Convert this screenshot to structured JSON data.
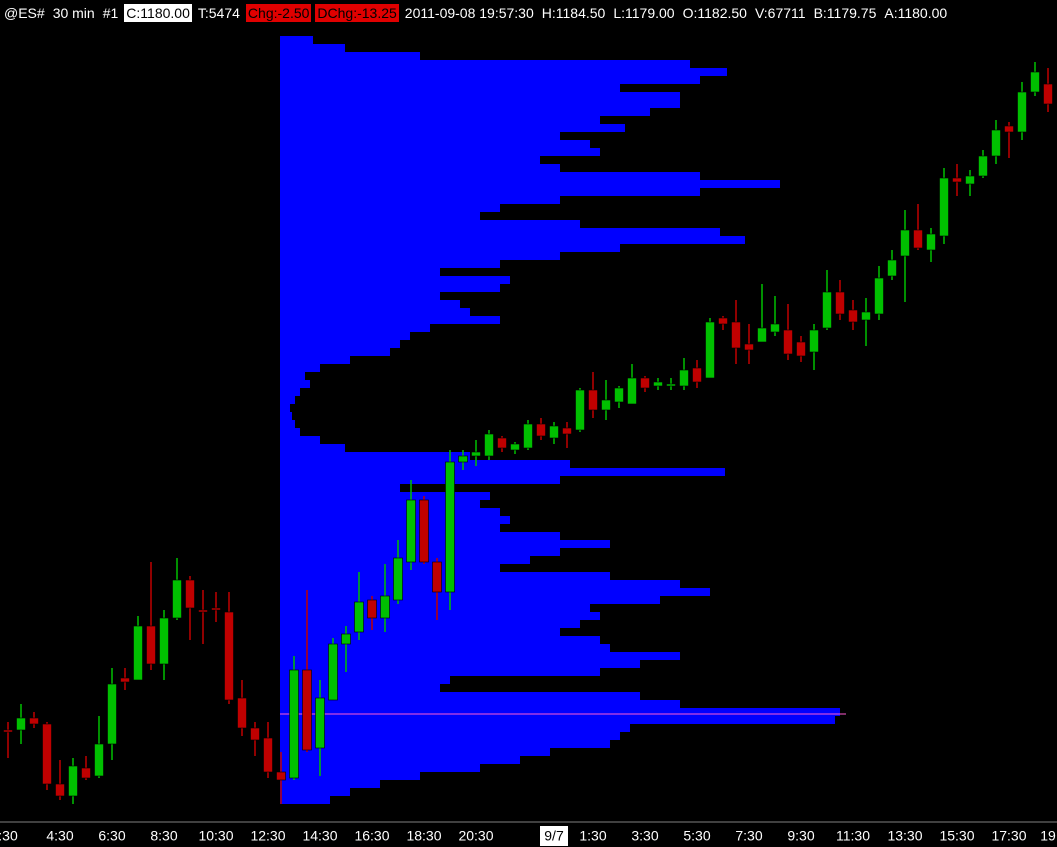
{
  "header": {
    "items": [
      "@ES#",
      "30 min",
      "#1",
      "C:1180.00",
      "T:5474",
      "Chg:-2.50",
      "DChg:-13.25",
      "2011-09-08 19:57:30",
      "H:1184.50",
      "L:1179.00",
      "O:1182.50",
      "V:67711",
      "B:1179.75",
      "A:1180.00"
    ]
  },
  "chart_data": {
    "type": "candlestick",
    "categories": [
      ":30",
      null,
      null,
      null,
      "4:30",
      null,
      null,
      null,
      "6:30",
      null,
      null,
      null,
      "8:30",
      null,
      null,
      null,
      "10:30",
      null,
      null,
      null,
      "12:30",
      null,
      null,
      null,
      "14:30",
      null,
      null,
      null,
      "16:30",
      null,
      null,
      null,
      "18:30",
      null,
      null,
      null,
      "20:30",
      null,
      null,
      null,
      null,
      null,
      "9/7",
      null,
      null,
      "1:30",
      null,
      null,
      null,
      "3:30",
      null,
      null,
      null,
      "5:30",
      null,
      null,
      null,
      "7:30",
      null,
      null,
      null,
      "9:30",
      null,
      null,
      null,
      "11:30",
      null,
      null,
      null,
      "13:30",
      null,
      null,
      null,
      "15:30",
      null,
      null,
      null,
      "17:30",
      null,
      null,
      "19"
    ],
    "open": [
      1101.75,
      1101.75,
      1103.25,
      1102.5,
      1095,
      1093.5,
      1097,
      1096,
      1100,
      1108.25,
      1108,
      1114.75,
      1110,
      1115.75,
      1120.5,
      1116.75,
      1117,
      1116.5,
      1105.75,
      1102,
      1100.75,
      1096.5,
      1095.75,
      1109.25,
      1099.5,
      1105.5,
      1112.5,
      1114,
      1118,
      1115.75,
      1118,
      1122.75,
      1130.5,
      1122.75,
      1119,
      1135.25,
      1136,
      1136,
      1138.25,
      1136.75,
      1137,
      1140,
      1138.25,
      1139.5,
      1139.25,
      1144.25,
      1141.75,
      1142.75,
      1142.5,
      1145.75,
      1144.75,
      1144.75,
      1144.75,
      1147,
      1145.75,
      1153.25,
      1152.75,
      1150,
      1150.25,
      1151.5,
      1151.75,
      1150.25,
      1149,
      1152,
      1156.5,
      1154.25,
      1153,
      1153.75,
      1158.5,
      1161,
      1164.25,
      1161.75,
      1163.5,
      1170.75,
      1170,
      1171,
      1173.5,
      1177.25,
      1176.5,
      1181.5,
      1182.5
    ],
    "high": [
      1102.75,
      1105,
      1104,
      1102.75,
      1098,
      1098.25,
      1098.5,
      1103.5,
      1109.5,
      1109.5,
      1116,
      1122.75,
      1116.75,
      1123.25,
      1121,
      1119.25,
      1119,
      1119,
      1108,
      1102.75,
      1102.75,
      1099,
      1111,
      1119.25,
      1108,
      1113.25,
      1114.75,
      1121.5,
      1118.5,
      1122.5,
      1125.5,
      1133,
      1131,
      1123.25,
      1136.75,
      1136.75,
      1138,
      1139.25,
      1138.5,
      1137.75,
      1140.5,
      1140.75,
      1140.25,
      1140.25,
      1144.5,
      1146.5,
      1145.5,
      1144.75,
      1147.5,
      1146,
      1145.75,
      1145.75,
      1148.25,
      1148,
      1153.25,
      1153.5,
      1155.5,
      1152.5,
      1157.5,
      1156,
      1155,
      1151,
      1152.5,
      1159.25,
      1158,
      1155.5,
      1155.75,
      1159.75,
      1161.75,
      1166.75,
      1167.5,
      1164.5,
      1172,
      1172.5,
      1171.75,
      1174.25,
      1178,
      1177.75,
      1182.75,
      1185.25,
      1184.5
    ],
    "low": [
      1098.25,
      1100,
      1102,
      1094.25,
      1093,
      1092.5,
      1095.5,
      1095.75,
      1098,
      1106.75,
      1108,
      1109.25,
      1108,
      1115.5,
      1113,
      1112.5,
      1115.25,
      1105,
      1101,
      1098.5,
      1095.75,
      1092.5,
      1095.5,
      1099,
      1096,
      1105.5,
      1109,
      1113,
      1114.25,
      1114,
      1117.5,
      1121.75,
      1122.5,
      1115.5,
      1116.75,
      1134.25,
      1134.75,
      1135.5,
      1136.5,
      1136.25,
      1136.75,
      1138,
      1137.5,
      1137,
      1139,
      1140.75,
      1140.5,
      1142,
      1142.5,
      1144,
      1144.25,
      1144.25,
      1144.25,
      1144.5,
      1145.75,
      1151.75,
      1147.5,
      1147.5,
      1150.25,
      1151,
      1148,
      1147.75,
      1146.75,
      1151.75,
      1153,
      1151.75,
      1149.75,
      1153,
      1158,
      1155.25,
      1161.75,
      1160.25,
      1162.5,
      1168.5,
      1168.5,
      1170.75,
      1172.5,
      1173.25,
      1175.5,
      1181,
      1179
    ],
    "close": [
      1101.5,
      1103.25,
      1102.5,
      1095,
      1093.5,
      1097.25,
      1095.75,
      1100,
      1107.5,
      1107.75,
      1114.75,
      1110,
      1115.75,
      1120.5,
      1117,
      1116.5,
      1116.75,
      1105.5,
      1102,
      1100.5,
      1096.5,
      1095.5,
      1109.25,
      1099.25,
      1105.75,
      1112.5,
      1113.75,
      1117.75,
      1115.75,
      1118.5,
      1123.25,
      1130.5,
      1122.75,
      1119,
      1135.25,
      1136,
      1136.5,
      1138.75,
      1137,
      1137.5,
      1140,
      1138.5,
      1139.75,
      1138.75,
      1144.25,
      1141.75,
      1143,
      1144.5,
      1145.75,
      1144.5,
      1145.25,
      1145,
      1146.75,
      1145.25,
      1152.75,
      1152.5,
      1149.5,
      1149.25,
      1152,
      1152.5,
      1148.75,
      1148.5,
      1151.75,
      1156.5,
      1153.75,
      1152.75,
      1154,
      1158.25,
      1160.5,
      1164.25,
      1162,
      1163.75,
      1170.75,
      1170.25,
      1171,
      1173.5,
      1176.75,
      1176.5,
      1181.5,
      1184,
      1180
    ],
    "up_color": "#00c000",
    "down_color": "#c00000",
    "ylim": [
      1091,
      1188.5
    ],
    "profile": {
      "color": "#0000ff",
      "xlim": [
        0,
        777
      ],
      "poc": 1103.75,
      "poc_color": "#ff5ad2",
      "prices": [
        1188,
        1187,
        1186,
        1185,
        1184,
        1183,
        1182,
        1181,
        1180,
        1179,
        1178,
        1177,
        1176,
        1175,
        1174,
        1173,
        1172,
        1171,
        1170,
        1169,
        1168,
        1167,
        1166,
        1165,
        1164,
        1163,
        1162,
        1161,
        1160,
        1159,
        1158,
        1157,
        1156,
        1155,
        1154,
        1153,
        1152,
        1151,
        1150,
        1149,
        1148,
        1147,
        1146,
        1145,
        1144,
        1143,
        1142,
        1141,
        1140,
        1139,
        1138,
        1137,
        1136,
        1135,
        1134,
        1133,
        1132,
        1131,
        1130,
        1129,
        1128,
        1127,
        1126,
        1125,
        1124,
        1123,
        1122,
        1121,
        1120,
        1119,
        1118,
        1117,
        1116,
        1115,
        1114,
        1113,
        1112,
        1111,
        1110,
        1109,
        1108,
        1107,
        1106,
        1105,
        1104,
        1103,
        1102,
        1101,
        1100,
        1099,
        1098,
        1097,
        1096,
        1095,
        1094,
        1093
      ],
      "volumes": [
        33,
        65,
        140,
        410,
        447,
        420,
        340,
        400,
        400,
        370,
        320,
        345,
        280,
        310,
        320,
        260,
        280,
        420,
        500,
        420,
        280,
        220,
        200,
        300,
        440,
        465,
        340,
        280,
        220,
        160,
        230,
        220,
        160,
        180,
        190,
        220,
        150,
        130,
        120,
        110,
        70,
        40,
        25,
        30,
        20,
        15,
        10,
        12,
        15,
        20,
        40,
        65,
        190,
        290,
        445,
        280,
        120,
        210,
        200,
        220,
        230,
        220,
        280,
        330,
        280,
        250,
        220,
        330,
        400,
        430,
        380,
        310,
        320,
        300,
        280,
        320,
        330,
        400,
        360,
        320,
        170,
        160,
        360,
        400,
        560,
        555,
        350,
        340,
        330,
        270,
        240,
        200,
        140,
        100,
        70,
        50
      ]
    }
  }
}
